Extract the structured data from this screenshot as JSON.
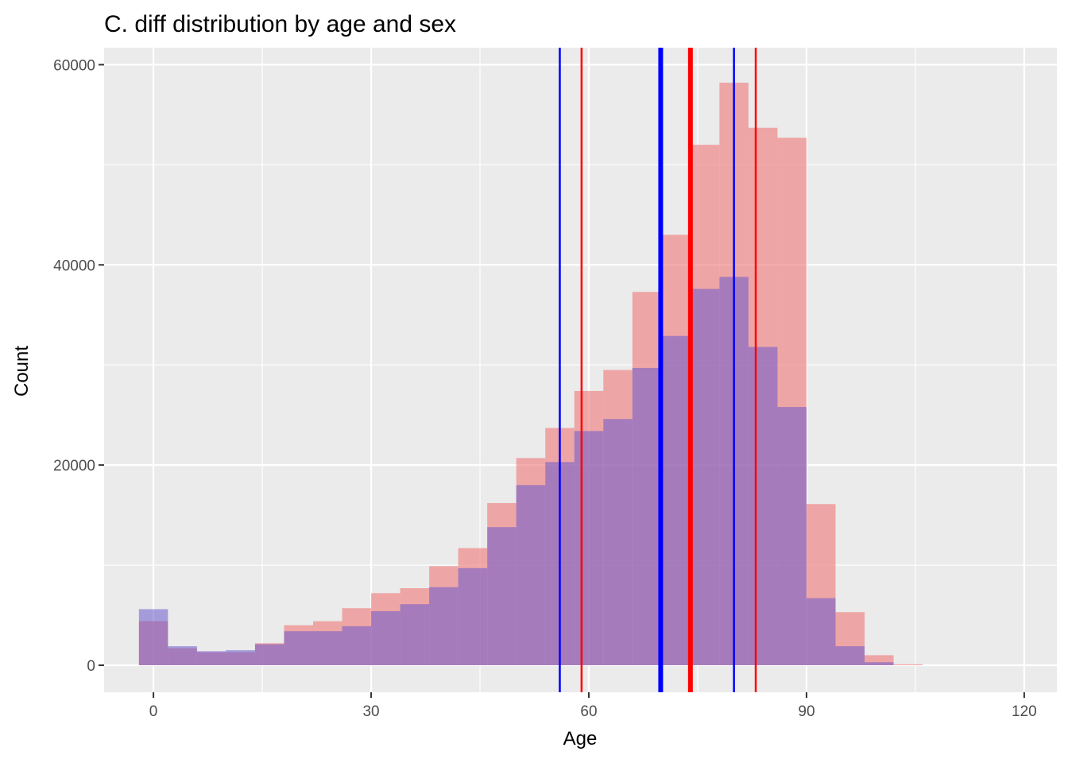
{
  "colors": {
    "panel_background": "#EBEBEB",
    "grid": "#FFFFFF",
    "female_fill": "#F08080",
    "male_fill": "#6A5ACD",
    "tick_color": "#333333",
    "line_blue": "#0000FF",
    "line_red": "#FF0000"
  },
  "chart_data": {
    "type": "bar",
    "title": "C. diff distribution by age and sex",
    "xlabel": "Age",
    "ylabel": "Count",
    "xlim": [
      -6.8,
      124.5
    ],
    "ylim": [
      -2700,
      61700
    ],
    "x_ticks": [
      0,
      30,
      60,
      90,
      120
    ],
    "y_ticks": [
      0,
      20000,
      40000,
      60000
    ],
    "x_tick_labels": [
      "0",
      "30",
      "60",
      "90",
      "120"
    ],
    "y_tick_labels": [
      "0",
      "20000",
      "40000",
      "60000"
    ],
    "grid": true,
    "legend": "none",
    "bin_width": 4,
    "bin_starts": [
      -2,
      2,
      6,
      10,
      14,
      18,
      22,
      26,
      30,
      34,
      38,
      42,
      46,
      50,
      54,
      58,
      62,
      66,
      70,
      74,
      78,
      82,
      86,
      90,
      94,
      98,
      102
    ],
    "series": [
      {
        "color": "#F08080",
        "opacity": 0.65,
        "values": [
          4400,
          1700,
          1300,
          1300,
          2200,
          4000,
          4400,
          5700,
          7200,
          7700,
          9900,
          11700,
          16200,
          20700,
          23700,
          27400,
          29500,
          37300,
          43000,
          52000,
          58200,
          53700,
          52700,
          16100,
          5300,
          1000,
          100
        ]
      },
      {
        "color": "#6A5ACD",
        "opacity": 0.55,
        "values": [
          5600,
          1900,
          1400,
          1500,
          2100,
          3400,
          3400,
          3900,
          5400,
          6100,
          7800,
          9700,
          13800,
          18000,
          20300,
          23400,
          24600,
          29700,
          32900,
          37600,
          38800,
          31800,
          25800,
          6700,
          1900,
          300,
          0
        ]
      }
    ],
    "vlines": [
      {
        "x": 56,
        "color": "#0000FF",
        "width": 2.5
      },
      {
        "x": 59,
        "color": "#FF0000",
        "width": 2.5
      },
      {
        "x": 69.9,
        "color": "#0000FF",
        "width": 6
      },
      {
        "x": 74,
        "color": "#FF0000",
        "width": 6
      },
      {
        "x": 80,
        "color": "#0000FF",
        "width": 2.5
      },
      {
        "x": 83,
        "color": "#FF0000",
        "width": 2.5
      }
    ]
  }
}
